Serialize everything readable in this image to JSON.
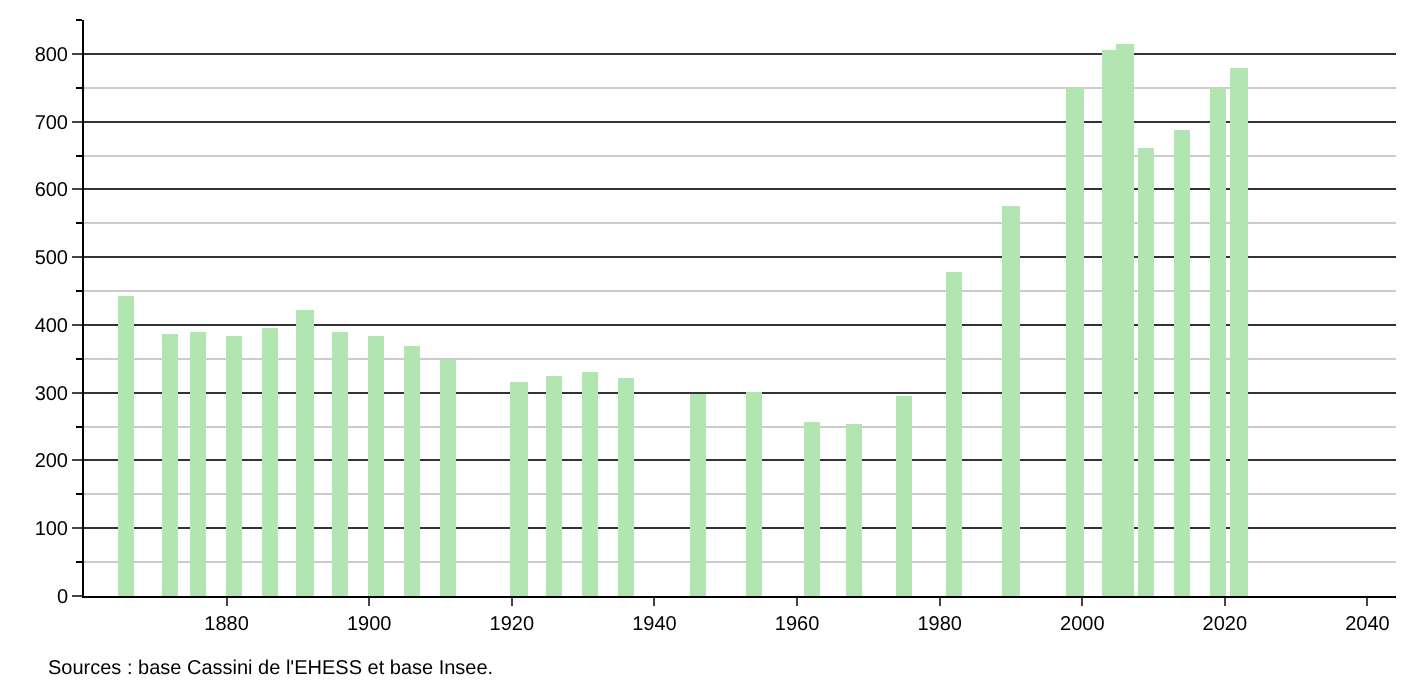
{
  "chart_data": {
    "type": "bar",
    "x": [
      1866,
      1872,
      1876,
      1881,
      1886,
      1891,
      1896,
      1901,
      1906,
      1911,
      1921,
      1926,
      1931,
      1936,
      1946,
      1954,
      1962,
      1968,
      1975,
      1982,
      1990,
      1999,
      2004,
      2006,
      2009,
      2014,
      2019,
      2022
    ],
    "values": [
      444,
      386,
      389,
      383,
      395,
      422,
      389,
      383,
      369,
      348,
      316,
      326,
      332,
      321,
      298,
      300,
      256,
      253,
      294,
      479,
      576,
      749,
      807,
      815,
      662,
      689,
      749,
      780
    ],
    "color": "#b2e5b2",
    "xlim": [
      1860,
      2044
    ],
    "xticks": [
      1880,
      1900,
      1920,
      1940,
      1960,
      1980,
      2000,
      2020,
      2040
    ],
    "ylim": [
      0,
      850
    ],
    "yticks": [
      0,
      100,
      200,
      300,
      400,
      500,
      600,
      700,
      800
    ],
    "grid": "y",
    "annotations": [
      "Sources : base Cassini de l'EHESS et base Insee."
    ]
  }
}
